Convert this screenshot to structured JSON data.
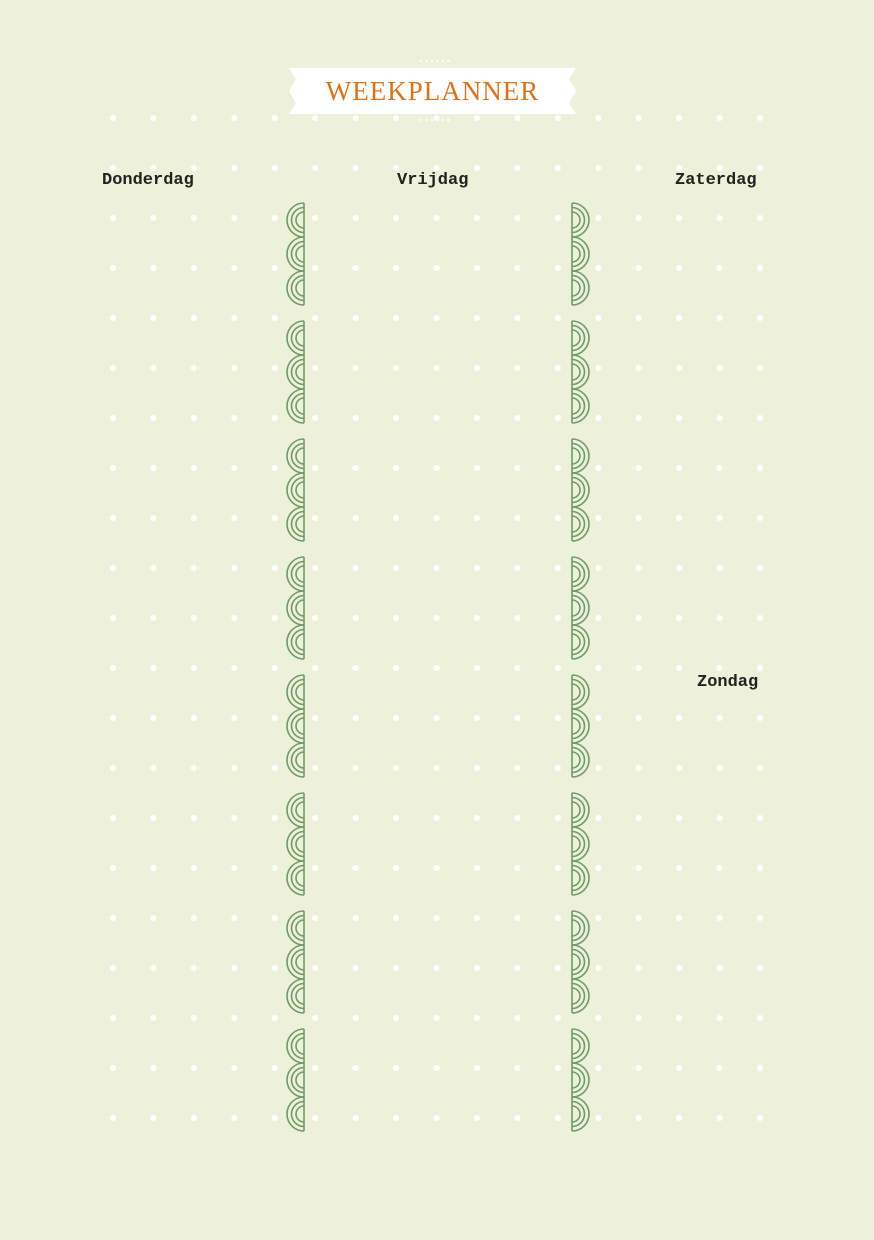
{
  "title": "WEEKPLANNER",
  "days": [
    "Donderdag",
    "Vrijdag",
    "Zaterdag",
    "Zondag"
  ],
  "colors": {
    "background": "#eef1da",
    "title": "#d9731e",
    "scallop": "#6f9a66",
    "dots": "#ffffff",
    "banner": "#ffffff"
  }
}
